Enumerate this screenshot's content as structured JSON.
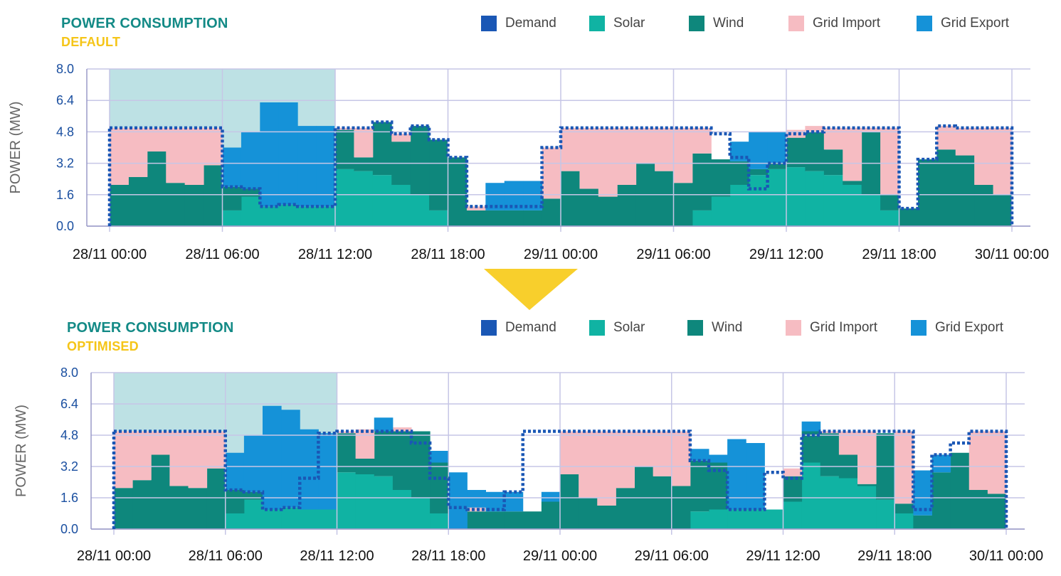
{
  "colors": {
    "demand": "#1a57b5",
    "solar": "#10b3a3",
    "wind": "#0e877c",
    "grid_import": "#f6bcc2",
    "grid_export": "#1592d8",
    "highlight": "#bde1e4",
    "title": "#138a86",
    "subtitle": "#f5c518",
    "arrow": "#f8cf2c",
    "gridline": "#c6c6e6",
    "ytick": "#1a4fa0"
  },
  "legend": [
    {
      "key": "demand",
      "label": "Demand"
    },
    {
      "key": "solar",
      "label": "Solar"
    },
    {
      "key": "wind",
      "label": "Wind"
    },
    {
      "key": "grid_import",
      "label": "Grid Import"
    },
    {
      "key": "grid_export",
      "label": "Grid Export"
    }
  ],
  "chart_data": [
    {
      "type": "area",
      "title": "POWER CONSUMPTION",
      "subtitle": "DEFAULT",
      "ylabel": "POWER (MW)",
      "xlabel": "",
      "ylim": [
        0,
        8
      ],
      "y_ticks": [
        "0.0",
        "1.6",
        "3.2",
        "4.8",
        "6.4",
        "8.0"
      ],
      "x_range": [
        "28/11 00:00",
        "30/11 00:00"
      ],
      "x_ticks": [
        "28/11 00:00",
        "28/11 06:00",
        "28/11 12:00",
        "28/11 18:00",
        "29/11 00:00",
        "29/11 06:00",
        "29/11 12:00",
        "29/11 18:00",
        "30/11 00:00"
      ],
      "grid": true,
      "highlight_window": [
        "28/11 00:00",
        "28/11 12:00"
      ],
      "interval_hours": 1,
      "series": [
        {
          "name": "Solar",
          "key": "solar",
          "values": [
            0,
            0,
            0,
            0,
            0,
            0,
            0.8,
            1.5,
            1.0,
            1.1,
            1.0,
            1.0,
            2.9,
            2.8,
            2.6,
            2.1,
            1.6,
            0.8,
            0,
            0,
            0,
            0,
            0,
            0,
            0,
            0,
            0,
            0,
            0,
            0,
            0,
            0.8,
            1.5,
            2.1,
            2.6,
            2.9,
            3.0,
            2.8,
            2.6,
            2.1,
            1.6,
            0.8,
            0,
            0,
            0,
            0,
            0,
            0
          ]
        },
        {
          "name": "Wind",
          "key": "wind",
          "values": [
            2.1,
            2.5,
            3.8,
            2.2,
            2.1,
            3.1,
            1.2,
            0.4,
            0,
            0,
            0,
            0,
            2.0,
            0.7,
            2.7,
            2.2,
            3.5,
            3.6,
            3.5,
            0.8,
            0.8,
            0.8,
            0.8,
            1.4,
            2.8,
            1.9,
            1.5,
            2.1,
            3.2,
            2.8,
            2.2,
            2.9,
            1.9,
            1.2,
            0.3,
            0.3,
            1.5,
            2.0,
            1.3,
            0.2,
            3.2,
            0.8,
            0.9,
            3.4,
            3.9,
            3.6,
            2.1,
            1.6
          ]
        },
        {
          "name": "Grid Import",
          "key": "grid_import",
          "values": [
            2.9,
            2.5,
            1.2,
            2.8,
            2.9,
            1.9,
            0,
            0,
            0,
            0,
            0,
            0,
            0.1,
            1.5,
            0,
            0.4,
            0,
            0,
            0,
            0.2,
            0,
            0,
            0,
            2.6,
            2.2,
            3.1,
            3.5,
            2.9,
            1.8,
            2.2,
            2.8,
            1.3,
            0,
            0,
            0,
            0,
            0.4,
            0.3,
            1.1,
            2.7,
            0.2,
            3.4,
            0,
            0,
            1.2,
            1.4,
            2.9,
            3.4
          ]
        },
        {
          "name": "Grid Export",
          "key": "grid_export",
          "values": [
            0,
            0,
            0,
            0,
            0,
            0,
            2.0,
            2.9,
            5.3,
            5.2,
            4.1,
            4.1,
            0,
            0,
            0,
            0,
            0,
            0,
            0,
            0,
            1.4,
            1.5,
            1.5,
            0,
            0,
            0,
            0,
            0,
            0,
            0,
            0,
            0,
            0,
            1.0,
            1.9,
            1.6,
            0,
            0,
            0,
            0,
            0,
            0,
            0,
            0,
            0,
            0,
            0,
            0
          ]
        },
        {
          "name": "Demand",
          "key": "demand",
          "values": [
            5.0,
            5.0,
            5.0,
            5.0,
            5.0,
            5.0,
            2.0,
            1.9,
            1.0,
            1.1,
            1.0,
            1.0,
            5.0,
            5.0,
            5.3,
            4.7,
            5.1,
            4.4,
            3.5,
            1.0,
            1.0,
            1.0,
            1.0,
            4.0,
            5.0,
            5.0,
            5.0,
            5.0,
            5.0,
            5.0,
            5.0,
            5.0,
            4.7,
            3.5,
            1.9,
            3.2,
            4.7,
            4.8,
            5.0,
            5.0,
            5.0,
            5.0,
            0.9,
            3.4,
            5.1,
            5.0,
            5.0,
            5.0
          ]
        }
      ]
    },
    {
      "type": "area",
      "title": "POWER CONSUMPTION",
      "subtitle": "OPTIMISED",
      "ylabel": "POWER (MW)",
      "xlabel": "",
      "ylim": [
        0,
        8
      ],
      "y_ticks": [
        "0.0",
        "1.6",
        "3.2",
        "4.8",
        "6.4",
        "8.0"
      ],
      "x_range": [
        "28/11 00:00",
        "30/11 00:00"
      ],
      "x_ticks": [
        "28/11 00:00",
        "28/11 06:00",
        "28/11 12:00",
        "28/11 18:00",
        "29/11 00:00",
        "29/11 06:00",
        "29/11 12:00",
        "29/11 18:00",
        "30/11 00:00"
      ],
      "grid": true,
      "highlight_window": [
        "28/11 00:00",
        "28/11 12:00"
      ],
      "interval_hours": 1,
      "series": [
        {
          "name": "Solar",
          "key": "solar",
          "values": [
            0,
            0,
            0,
            0,
            0,
            0,
            0.8,
            1.5,
            1.0,
            1.1,
            1.0,
            1.0,
            2.9,
            2.8,
            2.7,
            2.0,
            1.6,
            0.8,
            0,
            0,
            0,
            0,
            0,
            0,
            0,
            0,
            0,
            0,
            0,
            0,
            0,
            0.9,
            1.0,
            1.0,
            1.0,
            1.0,
            1.4,
            3.4,
            2.7,
            2.6,
            2.2,
            1.5,
            0.8,
            0,
            0,
            0,
            0,
            0
          ]
        },
        {
          "name": "Wind",
          "key": "wind",
          "values": [
            2.1,
            2.5,
            3.8,
            2.2,
            2.1,
            3.1,
            1.2,
            0.4,
            0,
            0,
            0,
            0,
            2.0,
            0.8,
            2.3,
            3.0,
            3.4,
            2.6,
            0,
            0.9,
            0.9,
            0.9,
            0.9,
            1.4,
            2.8,
            1.6,
            1.2,
            2.1,
            3.2,
            2.7,
            2.2,
            2.6,
            2.4,
            0,
            0,
            0,
            1.3,
            1.6,
            2.2,
            1.2,
            0.1,
            3.4,
            0.5,
            0.7,
            2.9,
            3.9,
            2.0,
            1.8
          ]
        },
        {
          "name": "Grid Import",
          "key": "grid_import",
          "values": [
            2.9,
            2.5,
            1.2,
            2.8,
            2.9,
            1.9,
            0,
            0,
            0,
            0,
            0,
            0,
            0.1,
            1.5,
            0,
            0.2,
            0,
            0,
            0,
            0.2,
            0,
            0,
            0,
            0,
            2.2,
            3.4,
            3.8,
            2.9,
            1.8,
            2.3,
            2.8,
            0,
            0,
            0,
            0,
            0,
            0.4,
            0,
            0.1,
            1.2,
            2.7,
            0,
            3.7,
            0,
            0,
            0,
            3.0,
            3.2
          ]
        },
        {
          "name": "Grid Export",
          "key": "grid_export",
          "values": [
            0,
            0,
            0,
            0,
            0,
            0,
            1.9,
            2.9,
            5.3,
            5.0,
            4.1,
            3.9,
            0,
            0,
            0.7,
            0,
            0,
            0.6,
            2.9,
            0.9,
            1.0,
            1.0,
            0,
            0.5,
            0,
            0,
            0,
            0,
            0,
            0,
            0,
            0.6,
            0.4,
            3.6,
            3.4,
            0,
            0,
            0.5,
            0,
            0,
            0,
            0,
            0,
            2.3,
            0.9,
            0,
            0,
            0
          ]
        },
        {
          "name": "Demand",
          "key": "demand",
          "values": [
            5.0,
            5.0,
            5.0,
            5.0,
            5.0,
            5.0,
            2.0,
            1.9,
            1.0,
            1.1,
            2.6,
            4.9,
            5.0,
            5.0,
            5.0,
            5.0,
            4.4,
            2.6,
            1.1,
            1.0,
            1.0,
            1.9,
            5.0,
            5.0,
            5.0,
            5.0,
            5.0,
            5.0,
            5.0,
            5.0,
            5.0,
            3.5,
            3.0,
            1.0,
            1.0,
            2.9,
            2.6,
            4.8,
            5.0,
            5.0,
            5.0,
            5.0,
            5.0,
            1.0,
            3.8,
            4.4,
            5.0,
            5.0
          ]
        }
      ]
    }
  ]
}
